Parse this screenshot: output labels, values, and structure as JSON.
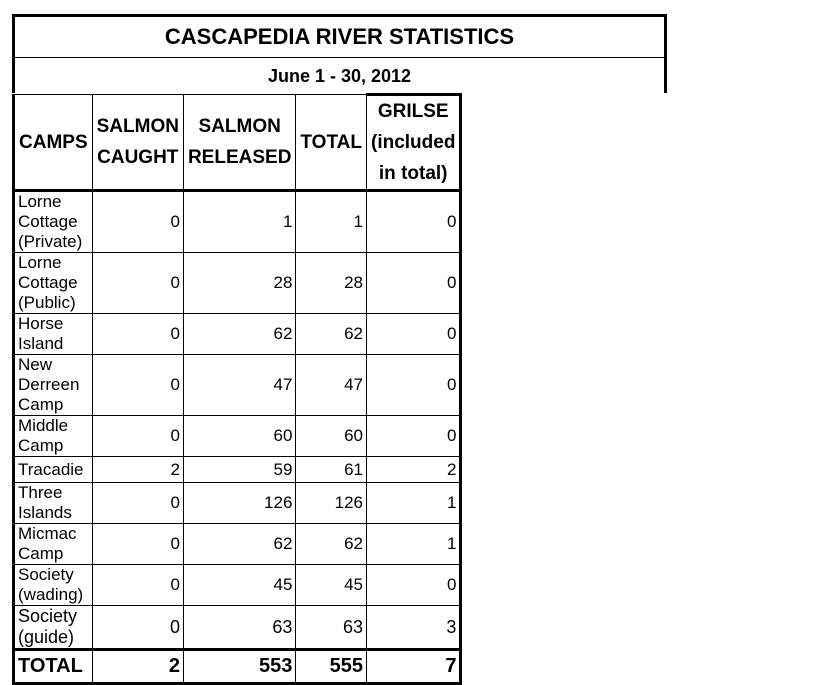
{
  "title": "CASCAPEDIA RIVER STATISTICS",
  "subtitle": "June 1 - 30, 2012",
  "headers": {
    "camps": "CAMPS",
    "salmon_caught": "SALMON CAUGHT",
    "salmon_released": "SALMON RELEASED",
    "total": "TOTAL",
    "grilse": "GRILSE (included in total)"
  },
  "rows": [
    {
      "camp": "Lorne Cottage (Private)",
      "caught": "0",
      "released": "1",
      "total": "1",
      "grilse": "0"
    },
    {
      "camp": "Lorne Cottage (Public)",
      "caught": "0",
      "released": "28",
      "total": "28",
      "grilse": "0"
    },
    {
      "camp": "Horse Island",
      "caught": "0",
      "released": "62",
      "total": "62",
      "grilse": "0"
    },
    {
      "camp": "New Derreen Camp",
      "caught": "0",
      "released": "47",
      "total": "47",
      "grilse": "0"
    },
    {
      "camp": "Middle Camp",
      "caught": "0",
      "released": "60",
      "total": "60",
      "grilse": "0"
    },
    {
      "camp": "Tracadie",
      "caught": "2",
      "released": "59",
      "total": "61",
      "grilse": "2"
    },
    {
      "camp": "Three Islands",
      "caught": "0",
      "released": "126",
      "total": "126",
      "grilse": "1"
    },
    {
      "camp": "Micmac Camp",
      "caught": "0",
      "released": "62",
      "total": "62",
      "grilse": "1"
    },
    {
      "camp": "Society (wading)",
      "caught": "0",
      "released": "45",
      "total": "45",
      "grilse": "0"
    },
    {
      "camp": "Society (guide)",
      "caught": "0",
      "released": "63",
      "total": "63",
      "grilse": "3"
    }
  ],
  "totals": {
    "label": "TOTAL",
    "caught": "2",
    "released": "553",
    "total": "555",
    "grilse": "7"
  }
}
